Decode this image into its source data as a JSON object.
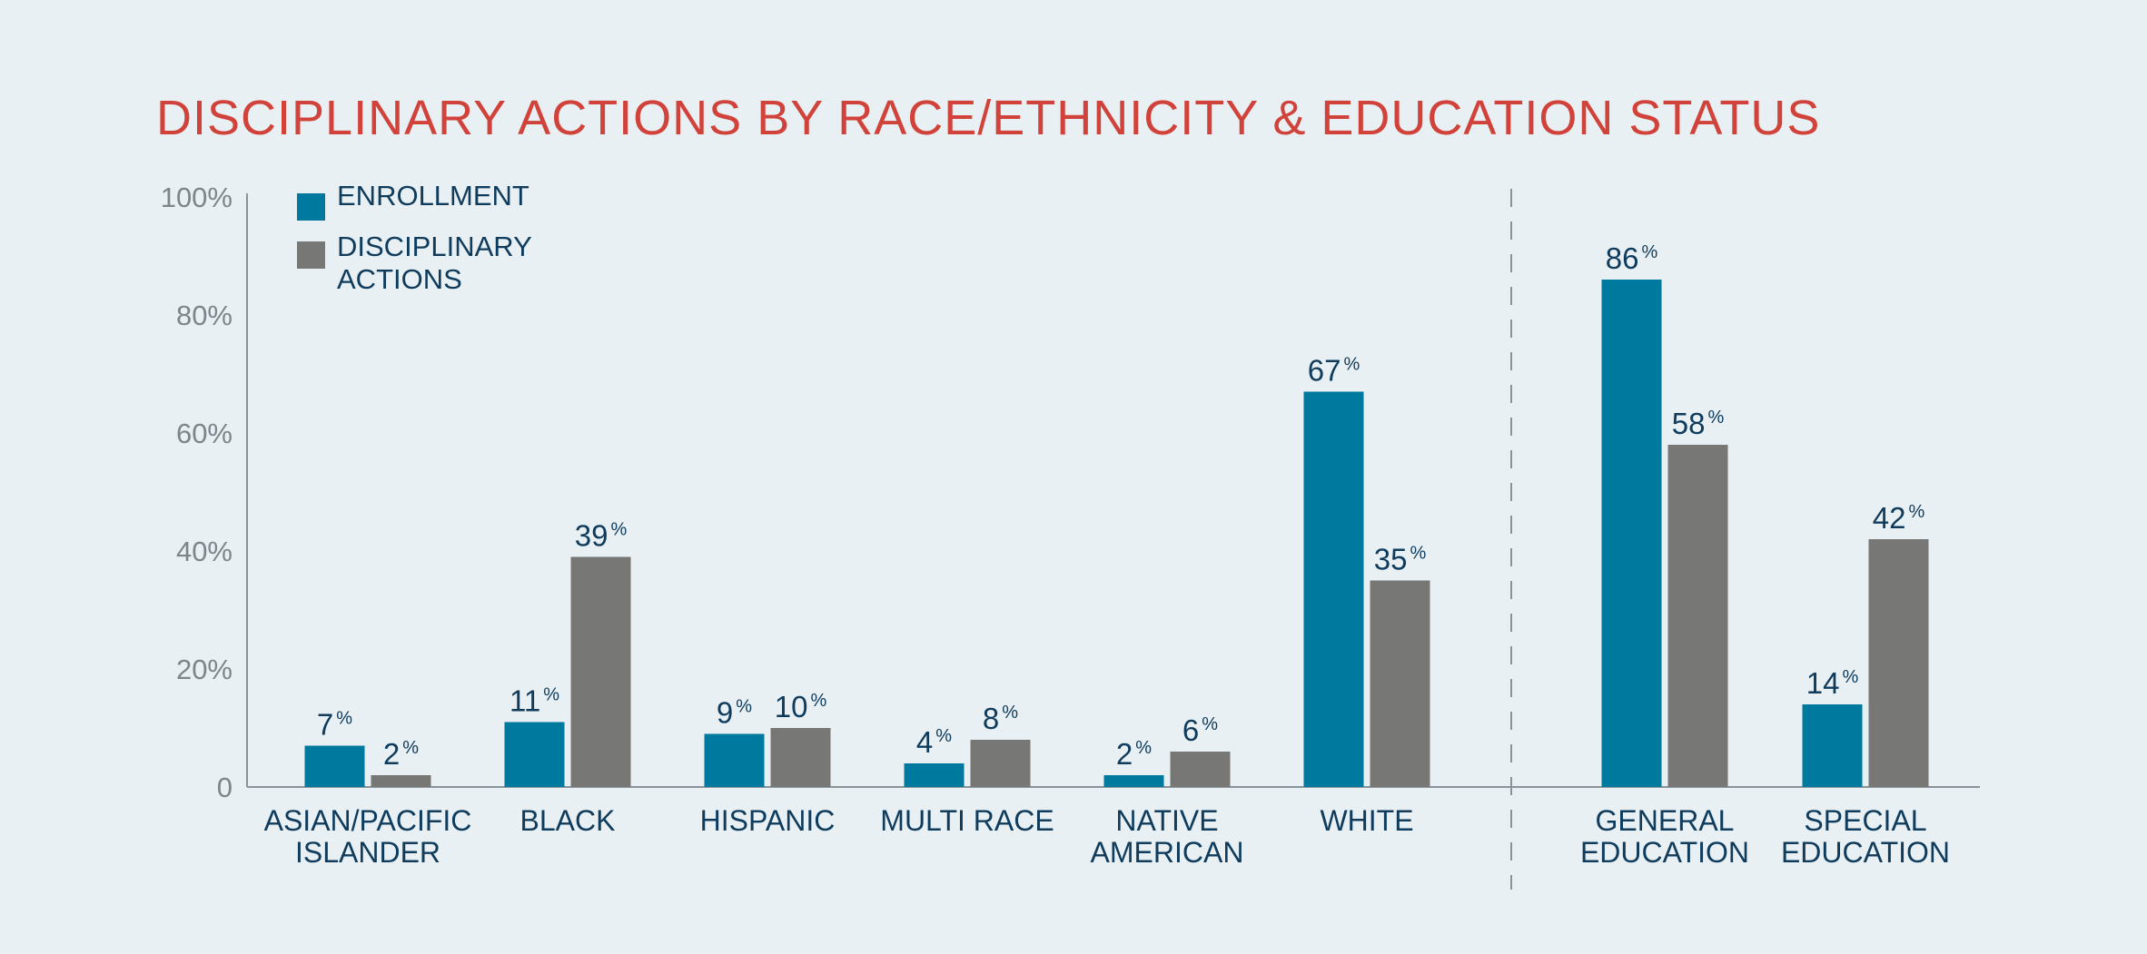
{
  "chart_data": {
    "type": "bar",
    "title": "DISCIPLINARY ACTIONS BY RACE/ETHNICITY & EDUCATION STATUS",
    "xlabel": "",
    "ylabel": "",
    "ylim": [
      0,
      100
    ],
    "yticks": [
      "0",
      "20%",
      "40%",
      "60%",
      "80%",
      "100%"
    ],
    "grid": false,
    "legend_position": "top-left",
    "value_suffix": "%",
    "categories": [
      [
        "ASIAN/PACIFIC",
        "ISLANDER"
      ],
      [
        "BLACK"
      ],
      [
        "HISPANIC"
      ],
      [
        "MULTI RACE"
      ],
      [
        "NATIVE",
        "AMERICAN"
      ],
      [
        "WHITE"
      ],
      [
        "GENERAL",
        "EDUCATION"
      ],
      [
        "SPECIAL",
        "EDUCATION"
      ]
    ],
    "divider_after_index": 5,
    "series": [
      {
        "name": [
          "ENROLLMENT"
        ],
        "color": "#00799f",
        "values": [
          7,
          11,
          9,
          4,
          2,
          67,
          86,
          14
        ]
      },
      {
        "name": [
          "DISCIPLINARY",
          "ACTIONS"
        ],
        "color": "#777776",
        "values": [
          2,
          39,
          10,
          8,
          6,
          35,
          58,
          42
        ]
      }
    ],
    "colors": {
      "title": "#d0423a",
      "axis": "#8a9399",
      "tick_label": "#7d858b",
      "category_label": "#0f3b5c",
      "value_label": "#0f3b5c",
      "background": "#e8f0f3"
    }
  }
}
